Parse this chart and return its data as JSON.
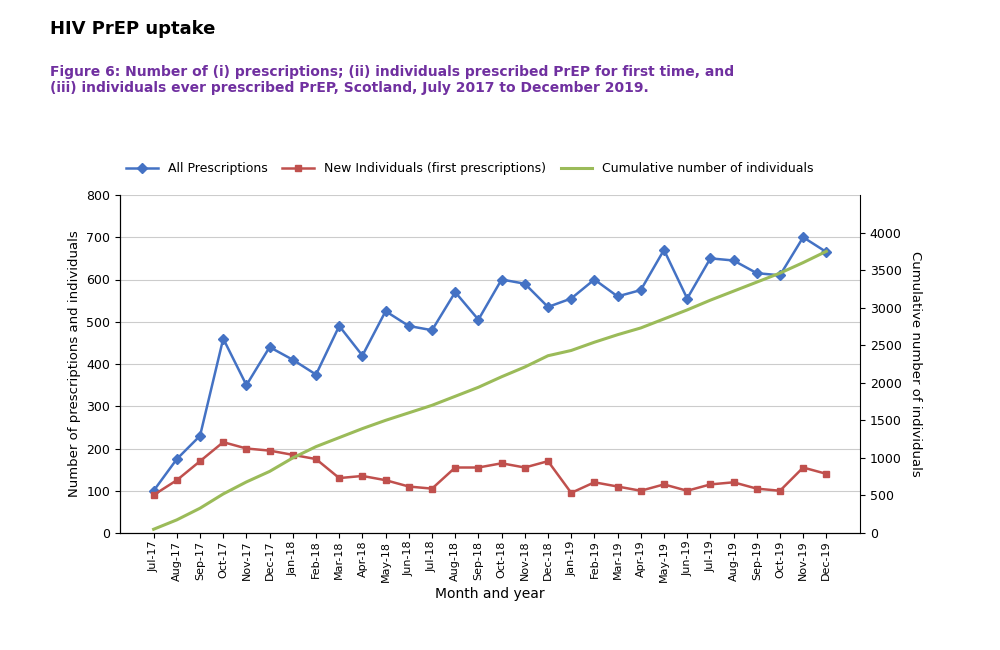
{
  "title_main": "HIV PrEP uptake",
  "title_figure": "Figure 6: Number of (i) prescriptions; (ii) individuals prescribed PrEP for first time, and\n(iii) individuals ever prescribed PrEP, Scotland, July 2017 to December 2019.",
  "xlabel": "Month and year",
  "ylabel_left": "Number of prescriptions and individuals",
  "ylabel_right": "Cumulative number of individuals",
  "months": [
    "Jul-17",
    "Aug-17",
    "Sep-17",
    "Oct-17",
    "Nov-17",
    "Dec-17",
    "Jan-18",
    "Feb-18",
    "Mar-18",
    "Apr-18",
    "May-18",
    "Jun-18",
    "Jul-18",
    "Aug-18",
    "Sep-18",
    "Oct-18",
    "Nov-18",
    "Dec-18",
    "Jan-19",
    "Feb-19",
    "Mar-19",
    "Apr-19",
    "May-19",
    "Jun-19",
    "Jul-19",
    "Aug-19",
    "Sep-19",
    "Oct-19",
    "Nov-19",
    "Dec-19"
  ],
  "all_prescriptions": [
    100,
    175,
    230,
    460,
    350,
    440,
    410,
    375,
    490,
    420,
    525,
    490,
    480,
    570,
    505,
    600,
    590,
    535,
    555,
    600,
    560,
    575,
    670,
    555,
    650,
    645,
    615,
    610,
    700,
    665
  ],
  "new_individuals": [
    90,
    125,
    170,
    215,
    200,
    195,
    185,
    175,
    130,
    135,
    125,
    110,
    105,
    155,
    155,
    165,
    155,
    170,
    95,
    120,
    110,
    100,
    115,
    100,
    115,
    120,
    105,
    100,
    155,
    140
  ],
  "cumulative_individuals": [
    50,
    175,
    330,
    520,
    680,
    820,
    1000,
    1150,
    1270,
    1390,
    1500,
    1600,
    1700,
    1820,
    1940,
    2080,
    2210,
    2360,
    2430,
    2540,
    2640,
    2730,
    2850,
    2970,
    3100,
    3220,
    3340,
    3460,
    3600,
    3750
  ],
  "color_blue": "#4472C4",
  "color_red": "#C0504D",
  "color_green": "#9BBB59",
  "ylim_left": [
    0,
    800
  ],
  "ylim_right": [
    0,
    4500
  ],
  "yticks_right": [
    0,
    500,
    1000,
    1500,
    2000,
    2500,
    3000,
    3500,
    4000
  ],
  "background_color": "#FFFFFF"
}
